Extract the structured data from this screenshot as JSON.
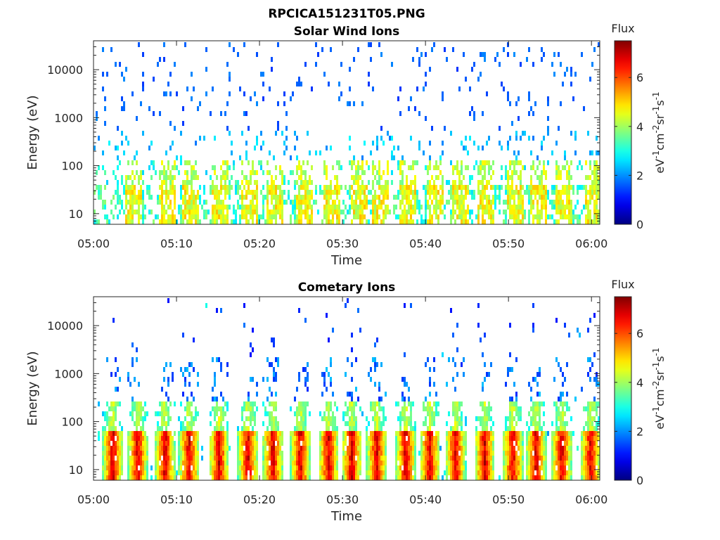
{
  "figure_title": "RPCICA151231T05.PNG",
  "chart_data": [
    {
      "type": "heatmap",
      "title": "Solar Wind Ions",
      "xlabel": "Time",
      "ylabel": "Energy (eV)",
      "x_ticks": [
        "05:00",
        "05:10",
        "05:20",
        "05:30",
        "05:40",
        "05:50",
        "06:00"
      ],
      "x_range_minutes": [
        0,
        61
      ],
      "y_scale": "log",
      "y_ticks": [
        {
          "value": 10,
          "label": "10"
        },
        {
          "value": 100,
          "label": "100"
        },
        {
          "value": 1000,
          "label": "1000"
        },
        {
          "value": 10000,
          "label": "10000"
        }
      ],
      "y_range": [
        6,
        40000
      ],
      "colorbar": {
        "title": "Flux",
        "label_parts": [
          "eV",
          "-1",
          "cm",
          "-2",
          "sr",
          "-1",
          "s",
          "-1"
        ],
        "ticks": [
          "0",
          "2",
          "4",
          "6"
        ],
        "range": [
          0,
          7.5
        ],
        "colormap": "jet"
      },
      "pattern": "sparse",
      "bursts_minutes": [
        4.8,
        8.8,
        11.5,
        15.2,
        18.6,
        21.8,
        25.2,
        28.6,
        31.8,
        34.4,
        37.8,
        41.0,
        44.0,
        47.2,
        50.6,
        53.4,
        56.6,
        60.2
      ]
    },
    {
      "type": "heatmap",
      "title": "Cometary Ions",
      "xlabel": "Time",
      "ylabel": "Energy (eV)",
      "x_ticks": [
        "05:00",
        "05:10",
        "05:20",
        "05:30",
        "05:40",
        "05:50",
        "06:00"
      ],
      "x_range_minutes": [
        0,
        61
      ],
      "y_scale": "log",
      "y_ticks": [
        {
          "value": 10,
          "label": "10"
        },
        {
          "value": 100,
          "label": "100"
        },
        {
          "value": 1000,
          "label": "1000"
        },
        {
          "value": 10000,
          "label": "10000"
        }
      ],
      "y_range": [
        6,
        40000
      ],
      "colorbar": {
        "title": "Flux",
        "label_parts": [
          "eV",
          "-1",
          "cm",
          "-2",
          "sr",
          "-1",
          "s",
          "-1"
        ],
        "ticks": [
          "0",
          "2",
          "4",
          "6"
        ],
        "range": [
          0,
          7.5
        ],
        "colormap": "jet"
      },
      "pattern": "bursts",
      "bursts_minutes": [
        2.2,
        5.2,
        8.5,
        11.4,
        15.0,
        18.5,
        21.5,
        24.8,
        28.2,
        31.0,
        34.0,
        37.5,
        40.4,
        43.5,
        47.0,
        50.4,
        53.2,
        56.3,
        59.8
      ]
    }
  ]
}
